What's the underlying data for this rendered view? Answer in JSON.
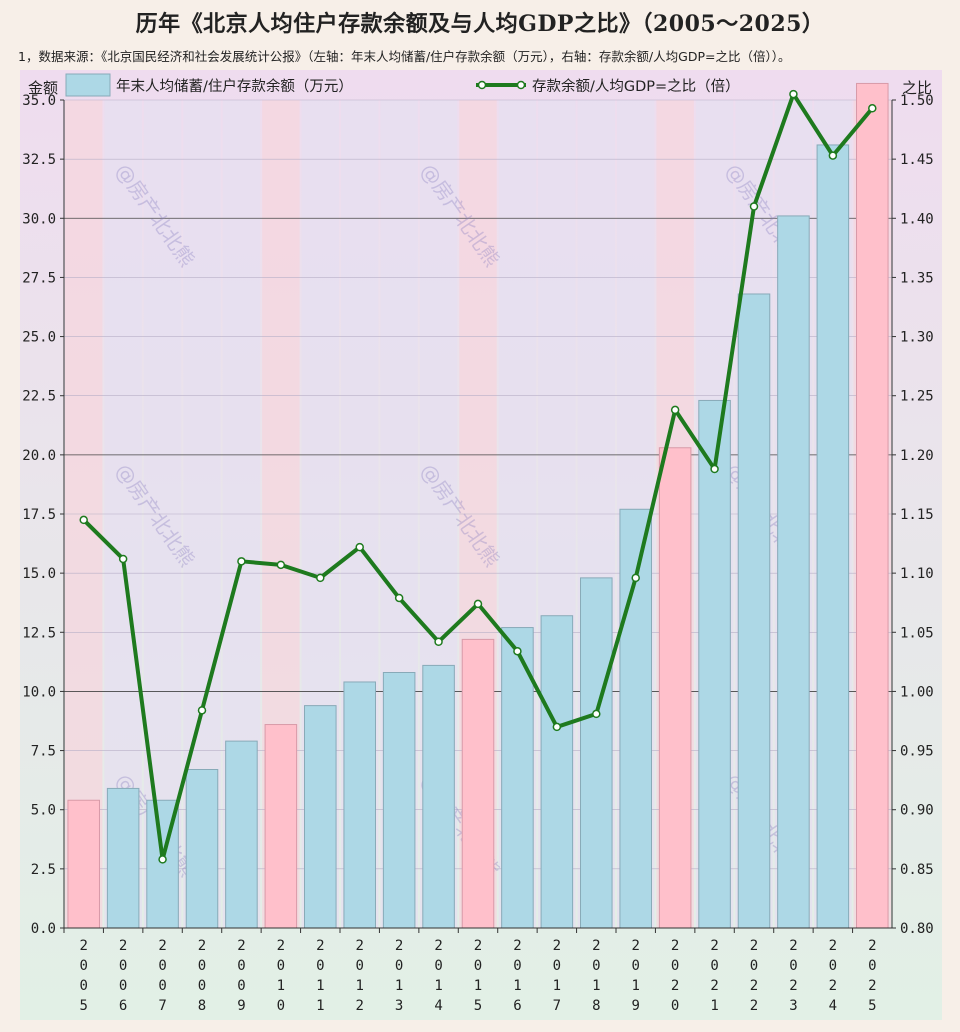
{
  "title": "历年《北京人均住户存款余额及与人均GDP之比》（2005～2025）",
  "subtitle": "1，数据来源：《北京国民经济和社会发展统计公报》（左轴：年末人均储蓄/住户存款余额（万元），右轴：存款余额/人均GDP=之比（倍））。",
  "watermark": "@房产北北熊",
  "colors": {
    "bar_normal": "#add8e6",
    "bar_highlight": "#ffc0cb",
    "line": "#1e7a1e",
    "band_normal": "#e6dff0",
    "band_highlight": "#f6d6de"
  },
  "chart_data": {
    "type": "bar",
    "x": [
      "2005",
      "2006",
      "2007",
      "2008",
      "2009",
      "2010",
      "2011",
      "2012",
      "2013",
      "2014",
      "2015",
      "2016",
      "2017",
      "2018",
      "2019",
      "2020",
      "2021",
      "2022",
      "2023",
      "2024",
      "2025"
    ],
    "highlight_years": [
      "2005",
      "2010",
      "2015",
      "2020",
      "2025"
    ],
    "ylabel": "金额",
    "ylabel_right": "之比",
    "ylim": [
      0,
      35
    ],
    "ylim_right": [
      0.8,
      1.5
    ],
    "yticks": [
      "0.0",
      "2.5",
      "5.0",
      "7.5",
      "10.0",
      "12.5",
      "15.0",
      "17.5",
      "20.0",
      "22.5",
      "25.0",
      "27.5",
      "30.0",
      "32.5",
      "35.0"
    ],
    "yticks_right": [
      "0.80",
      "0.85",
      "0.90",
      "0.95",
      "1.00",
      "1.05",
      "1.10",
      "1.15",
      "1.20",
      "1.25",
      "1.30",
      "1.35",
      "1.40",
      "1.45",
      "1.50"
    ],
    "legend_position": "top",
    "grid": true,
    "series": [
      {
        "name": "年末人均储蓄/住户存款余额（万元）",
        "type": "bar",
        "axis": "left",
        "values": [
          5.4,
          5.9,
          5.4,
          6.7,
          7.9,
          8.6,
          9.4,
          10.4,
          10.8,
          11.1,
          12.2,
          12.7,
          13.2,
          14.8,
          17.7,
          20.3,
          22.3,
          26.8,
          30.1,
          33.1,
          35.7
        ]
      },
      {
        "name": "存款余额/人均GDP=之比（倍）",
        "type": "line",
        "axis": "right",
        "values": [
          1.145,
          1.112,
          0.858,
          0.984,
          1.11,
          1.107,
          1.096,
          1.122,
          1.079,
          1.042,
          1.074,
          1.034,
          0.97,
          0.981,
          1.096,
          1.238,
          1.188,
          1.41,
          1.505,
          1.453,
          1.493
        ]
      }
    ]
  }
}
